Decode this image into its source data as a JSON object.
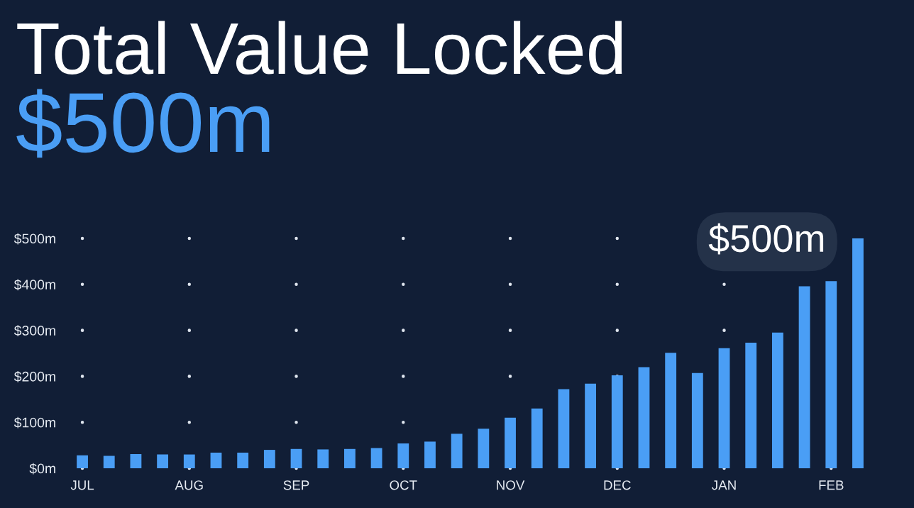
{
  "chart_data": {
    "type": "bar",
    "title": "Total Value Locked",
    "subtitle": "$500m",
    "categories": [
      "JUL",
      null,
      null,
      null,
      "AUG",
      null,
      null,
      null,
      "SEP",
      null,
      null,
      null,
      "OCT",
      null,
      null,
      null,
      "NOV",
      null,
      null,
      null,
      "DEC",
      null,
      null,
      null,
      "JAN",
      null,
      null,
      null,
      "FEB",
      null
    ],
    "values": [
      28,
      27,
      31,
      30,
      30,
      34,
      34,
      40,
      42,
      41,
      42,
      44,
      54,
      58,
      75,
      86,
      110,
      130,
      172,
      184,
      202,
      220,
      251,
      207,
      261,
      273,
      295,
      396,
      407,
      500
    ],
    "color": "#4a9ef5",
    "annotations": [
      "$500m"
    ],
    "ylim": [
      0,
      500
    ],
    "yticks": [
      {
        "value": 0,
        "label": "$0m"
      },
      {
        "value": 100,
        "label": "$100m"
      },
      {
        "value": 200,
        "label": "$200m"
      },
      {
        "value": 300,
        "label": "$300m"
      },
      {
        "value": 400,
        "label": "$400m"
      },
      {
        "value": 500,
        "label": "$500m"
      }
    ],
    "grid": true
  }
}
